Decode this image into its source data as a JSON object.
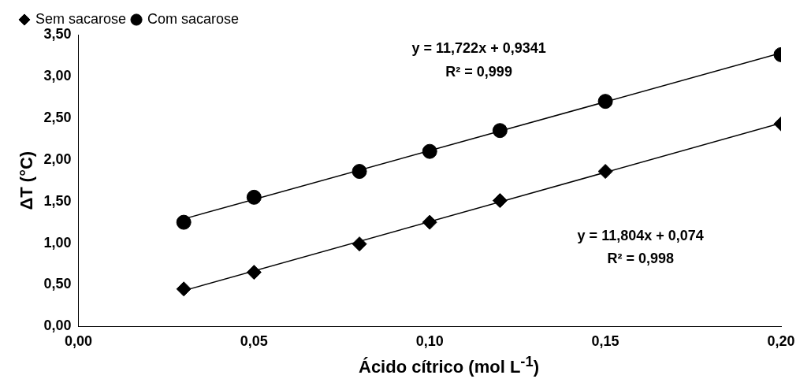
{
  "chart_data": {
    "type": "scatter",
    "xlabel": "Ácido cítrico (mol L$^{-1}$)",
    "ylabel": "ΔT (°C)",
    "xlim": [
      0,
      0.2
    ],
    "ylim": [
      0,
      3.5
    ],
    "xticks": [
      {
        "value": 0,
        "label": "0,00"
      },
      {
        "value": 0.05,
        "label": "0,05"
      },
      {
        "value": 0.1,
        "label": "0,10"
      },
      {
        "value": 0.15,
        "label": "0,15"
      },
      {
        "value": 0.2,
        "label": "0,20"
      }
    ],
    "yticks": [
      {
        "value": 0,
        "label": "0,00"
      },
      {
        "value": 0.5,
        "label": "0,50"
      },
      {
        "value": 1,
        "label": "1,00"
      },
      {
        "value": 1.5,
        "label": "1,50"
      },
      {
        "value": 2,
        "label": "2,00"
      },
      {
        "value": 2.5,
        "label": "2,50"
      },
      {
        "value": 3,
        "label": "3,00"
      },
      {
        "value": 3.5,
        "label": "3,50"
      }
    ],
    "grid": false,
    "legend": "top left",
    "series": [
      {
        "name": "Sem sacarose",
        "type": "scatter",
        "marker": "diamond",
        "color": "#000000",
        "x": [
          0.03,
          0.05,
          0.08,
          0.1,
          0.12,
          0.15,
          0.2
        ],
        "values": [
          0.45,
          0.65,
          0.99,
          1.25,
          1.51,
          1.86,
          2.43
        ]
      },
      {
        "name": "Com sacarose",
        "type": "scatter",
        "marker": "circle",
        "color": "#000000",
        "x": [
          0.03,
          0.05,
          0.08,
          0.1,
          0.12,
          0.15,
          0.2
        ],
        "values": [
          1.25,
          1.55,
          1.86,
          2.1,
          2.35,
          2.7,
          3.26
        ]
      },
      {
        "type": "line",
        "marker": "none",
        "color": "#000000",
        "x": [
          0.03,
          0.2
        ],
        "values": [
          0.43,
          2.44
        ]
      },
      {
        "type": "line",
        "marker": "none",
        "color": "#000000",
        "x": [
          0.03,
          0.2
        ],
        "values": [
          1.29,
          3.28
        ]
      }
    ],
    "annotations": [
      "y = 11,722x + 0,9341",
      "R² = 0,999",
      "y = 11,804x + 0,074",
      "R² = 0,998"
    ]
  }
}
